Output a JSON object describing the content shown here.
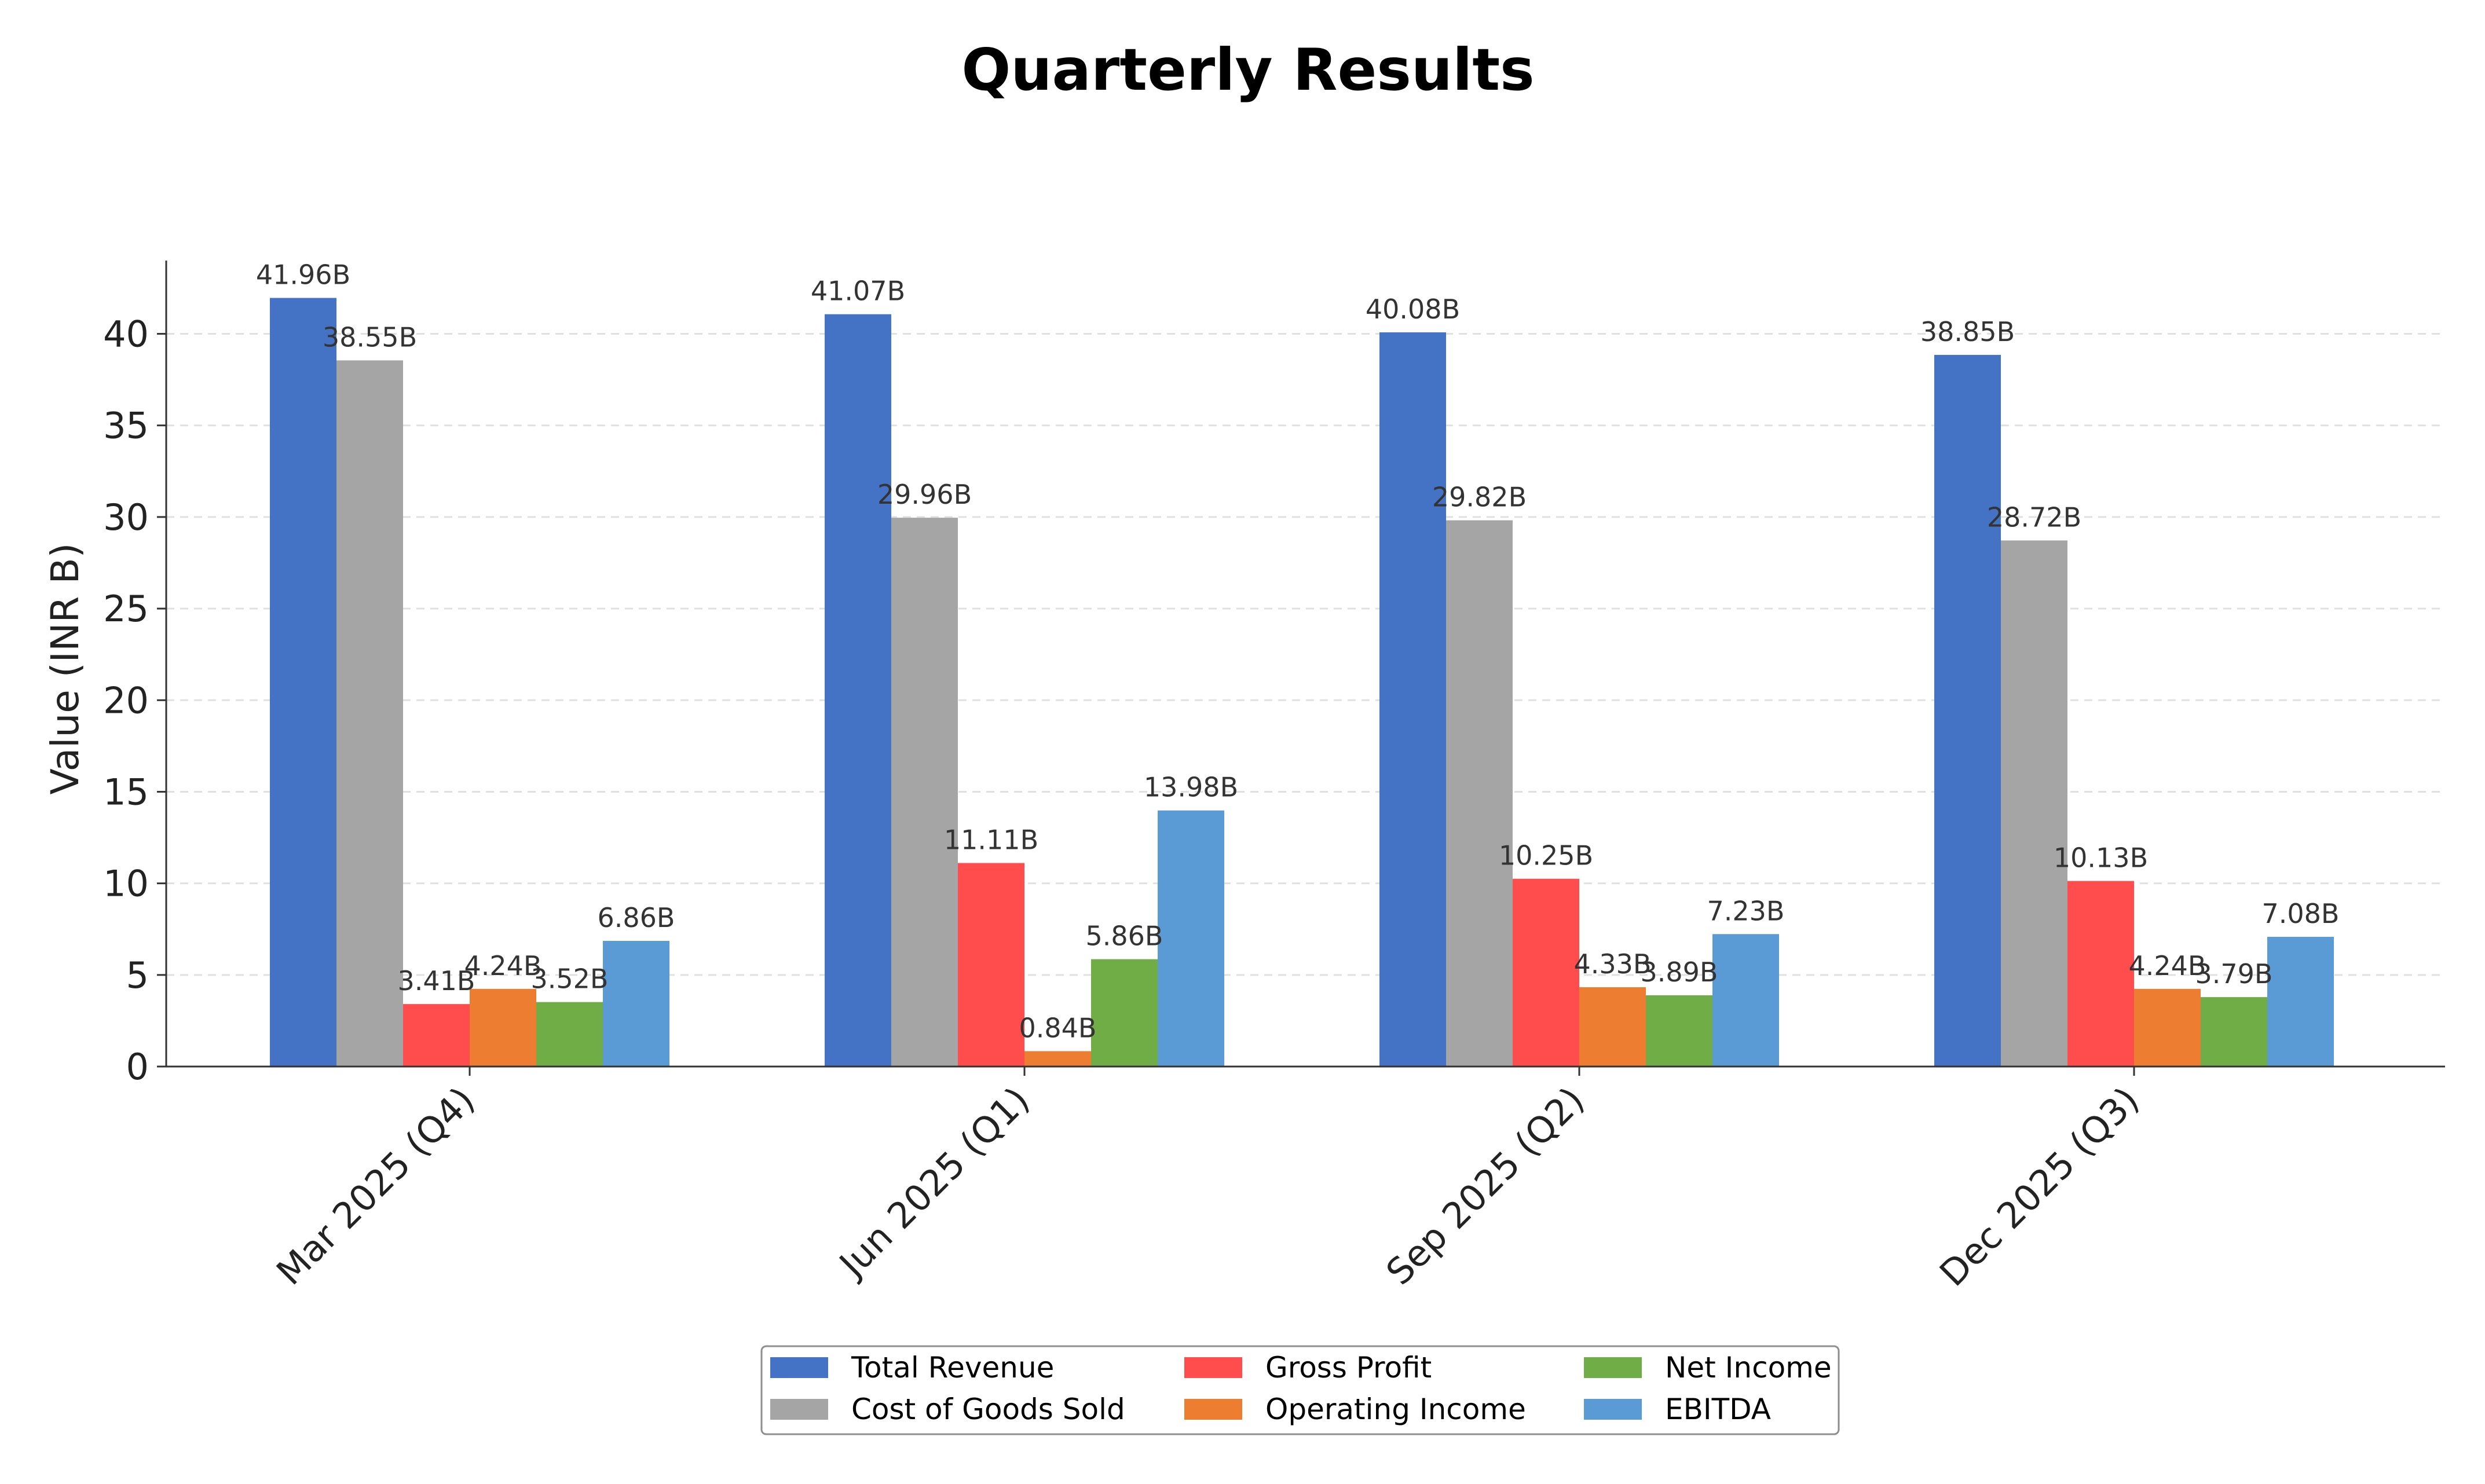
{
  "chart_data": {
    "type": "bar",
    "title": "Quarterly Results",
    "xlabel": "",
    "ylabel": "Value (INR B)",
    "ylim": [
      0,
      44
    ],
    "yticks": [
      0,
      5,
      10,
      15,
      20,
      25,
      30,
      35,
      40
    ],
    "grid": true,
    "legend_position": "bottom-center",
    "value_suffix": "B",
    "categories": [
      "Mar 2025 (Q4)",
      "Jun 2025 (Q1)",
      "Sep 2025 (Q2)",
      "Dec 2025 (Q3)"
    ],
    "series": [
      {
        "name": "Total Revenue",
        "color": "#4472C4",
        "values": [
          41.96,
          41.07,
          40.08,
          38.85
        ]
      },
      {
        "name": "Cost of Goods Sold",
        "color": "#A5A5A5",
        "values": [
          38.55,
          29.96,
          29.82,
          28.72
        ]
      },
      {
        "name": "Gross Profit",
        "color": "#FF4C4C",
        "values": [
          3.41,
          11.11,
          10.25,
          10.13
        ]
      },
      {
        "name": "Operating Income",
        "color": "#ED7D31",
        "values": [
          4.24,
          0.84,
          4.33,
          4.24
        ]
      },
      {
        "name": "Net Income",
        "color": "#70AD47",
        "values": [
          3.52,
          5.86,
          3.89,
          3.79
        ]
      },
      {
        "name": "EBITDA",
        "color": "#5B9BD5",
        "values": [
          6.86,
          13.98,
          7.23,
          7.08
        ]
      }
    ],
    "legend_order": [
      0,
      1,
      2,
      3,
      4,
      5
    ]
  }
}
